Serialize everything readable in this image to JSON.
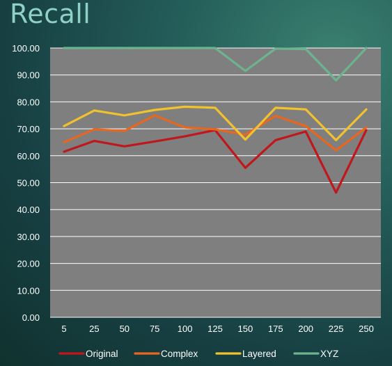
{
  "title": "Recall",
  "chart_data": {
    "type": "line",
    "title": "Recall",
    "x": [
      "5",
      "25",
      "50",
      "75",
      "100",
      "125",
      "150",
      "175",
      "200",
      "225",
      "250"
    ],
    "ylim": [
      0,
      100
    ],
    "yticks": [
      "0.00",
      "10.00",
      "20.00",
      "30.00",
      "40.00",
      "50.00",
      "60.00",
      "70.00",
      "80.00",
      "90.00",
      "100.00"
    ],
    "grid": true,
    "legend_position": "bottom",
    "series": [
      {
        "name": "Original",
        "color": "#c0171c",
        "values": [
          61.5,
          65.5,
          63.5,
          65.3,
          67.2,
          69.5,
          55.5,
          65.8,
          69.0,
          46.3,
          69.5
        ]
      },
      {
        "name": "Complex",
        "color": "#e8661e",
        "values": [
          65.0,
          69.8,
          69.2,
          75.0,
          70.5,
          69.8,
          67.8,
          74.8,
          71.0,
          62.0,
          70.5
        ]
      },
      {
        "name": "Layered",
        "color": "#f2c12e",
        "values": [
          71.0,
          76.8,
          75.0,
          77.0,
          78.2,
          77.8,
          66.0,
          77.8,
          77.2,
          65.8,
          77.2
        ]
      },
      {
        "name": "XYZ",
        "color": "#6cb48f",
        "values": [
          100.0,
          100.0,
          100.0,
          100.0,
          100.0,
          100.0,
          91.5,
          99.8,
          99.6,
          88.0,
          100.0
        ]
      }
    ]
  }
}
